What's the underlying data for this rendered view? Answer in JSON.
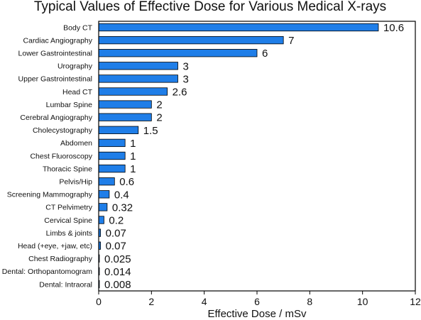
{
  "chart_data": {
    "type": "bar",
    "orientation": "horizontal",
    "title": "Typical Values of Effective Dose for Various Medical X-rays",
    "xlabel": "Effective Dose / mSv",
    "ylabel": "",
    "xlim": [
      0,
      12
    ],
    "xticks": [
      0,
      2,
      4,
      6,
      8,
      10,
      12
    ],
    "grid": false,
    "bar_color": "#1f7ee8",
    "bar_edge_color": "#000000",
    "categories": [
      "Body CT",
      "Cardiac Angiography",
      "Lower Gastrointestinal",
      "Urography",
      "Upper Gastrointestinal",
      "Head CT",
      "Lumbar Spine",
      "Cerebral Angiography",
      "Cholecystography",
      "Abdomen",
      "Chest Fluoroscopy",
      "Thoracic Spine",
      "Pelvis/Hip",
      "Screening Mammography",
      "CT Pelvimetry",
      "Cervical Spine",
      "Limbs & joints",
      "Head (+eye, +jaw, etc)",
      "Chest Radiography",
      "Dental: Orthopantomogram",
      "Dental: Intraoral"
    ],
    "values": [
      10.6,
      7,
      6,
      3,
      3,
      2.6,
      2,
      2,
      1.5,
      1,
      1,
      1,
      0.6,
      0.4,
      0.32,
      0.2,
      0.07,
      0.07,
      0.025,
      0.014,
      0.008
    ],
    "value_labels": [
      "10.6",
      "7",
      "6",
      "3",
      "3",
      "2.6",
      "2",
      "2",
      "1.5",
      "1",
      "1",
      "1",
      "0.6",
      "0.4",
      "0.32",
      "0.2",
      "0.07",
      "0.07",
      "0.025",
      "0.014",
      "0.008"
    ]
  }
}
